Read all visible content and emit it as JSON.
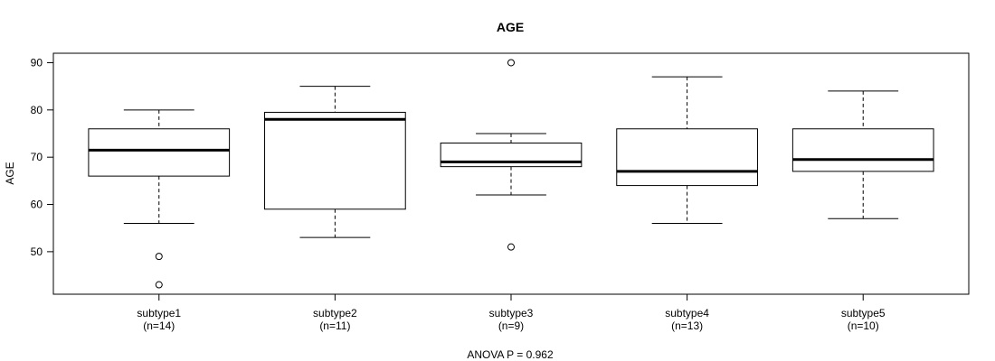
{
  "chart_data": {
    "type": "boxplot",
    "title": "AGE",
    "ylabel": "AGE",
    "xlabel": "ANOVA P = 0.962",
    "ylim": [
      41,
      92
    ],
    "yticks": [
      50,
      60,
      70,
      80,
      90
    ],
    "groups": [
      {
        "label": "subtype1",
        "n_label": "(n=14)",
        "whisker_low": 56,
        "q1": 66,
        "median": 71.5,
        "q3": 76,
        "whisker_high": 80,
        "outliers": [
          49,
          43
        ]
      },
      {
        "label": "subtype2",
        "n_label": "(n=11)",
        "whisker_low": 53,
        "q1": 59,
        "median": 78,
        "q3": 79.5,
        "whisker_high": 85,
        "outliers": []
      },
      {
        "label": "subtype3",
        "n_label": "(n=9)",
        "whisker_low": 62,
        "q1": 68,
        "median": 69,
        "q3": 73,
        "whisker_high": 75,
        "outliers": [
          90,
          51
        ]
      },
      {
        "label": "subtype4",
        "n_label": "(n=13)",
        "whisker_low": 56,
        "q1": 64,
        "median": 67,
        "q3": 76,
        "whisker_high": 87,
        "outliers": []
      },
      {
        "label": "subtype5",
        "n_label": "(n=10)",
        "whisker_low": 57,
        "q1": 67,
        "median": 69.5,
        "q3": 76,
        "whisker_high": 84,
        "outliers": []
      }
    ]
  }
}
